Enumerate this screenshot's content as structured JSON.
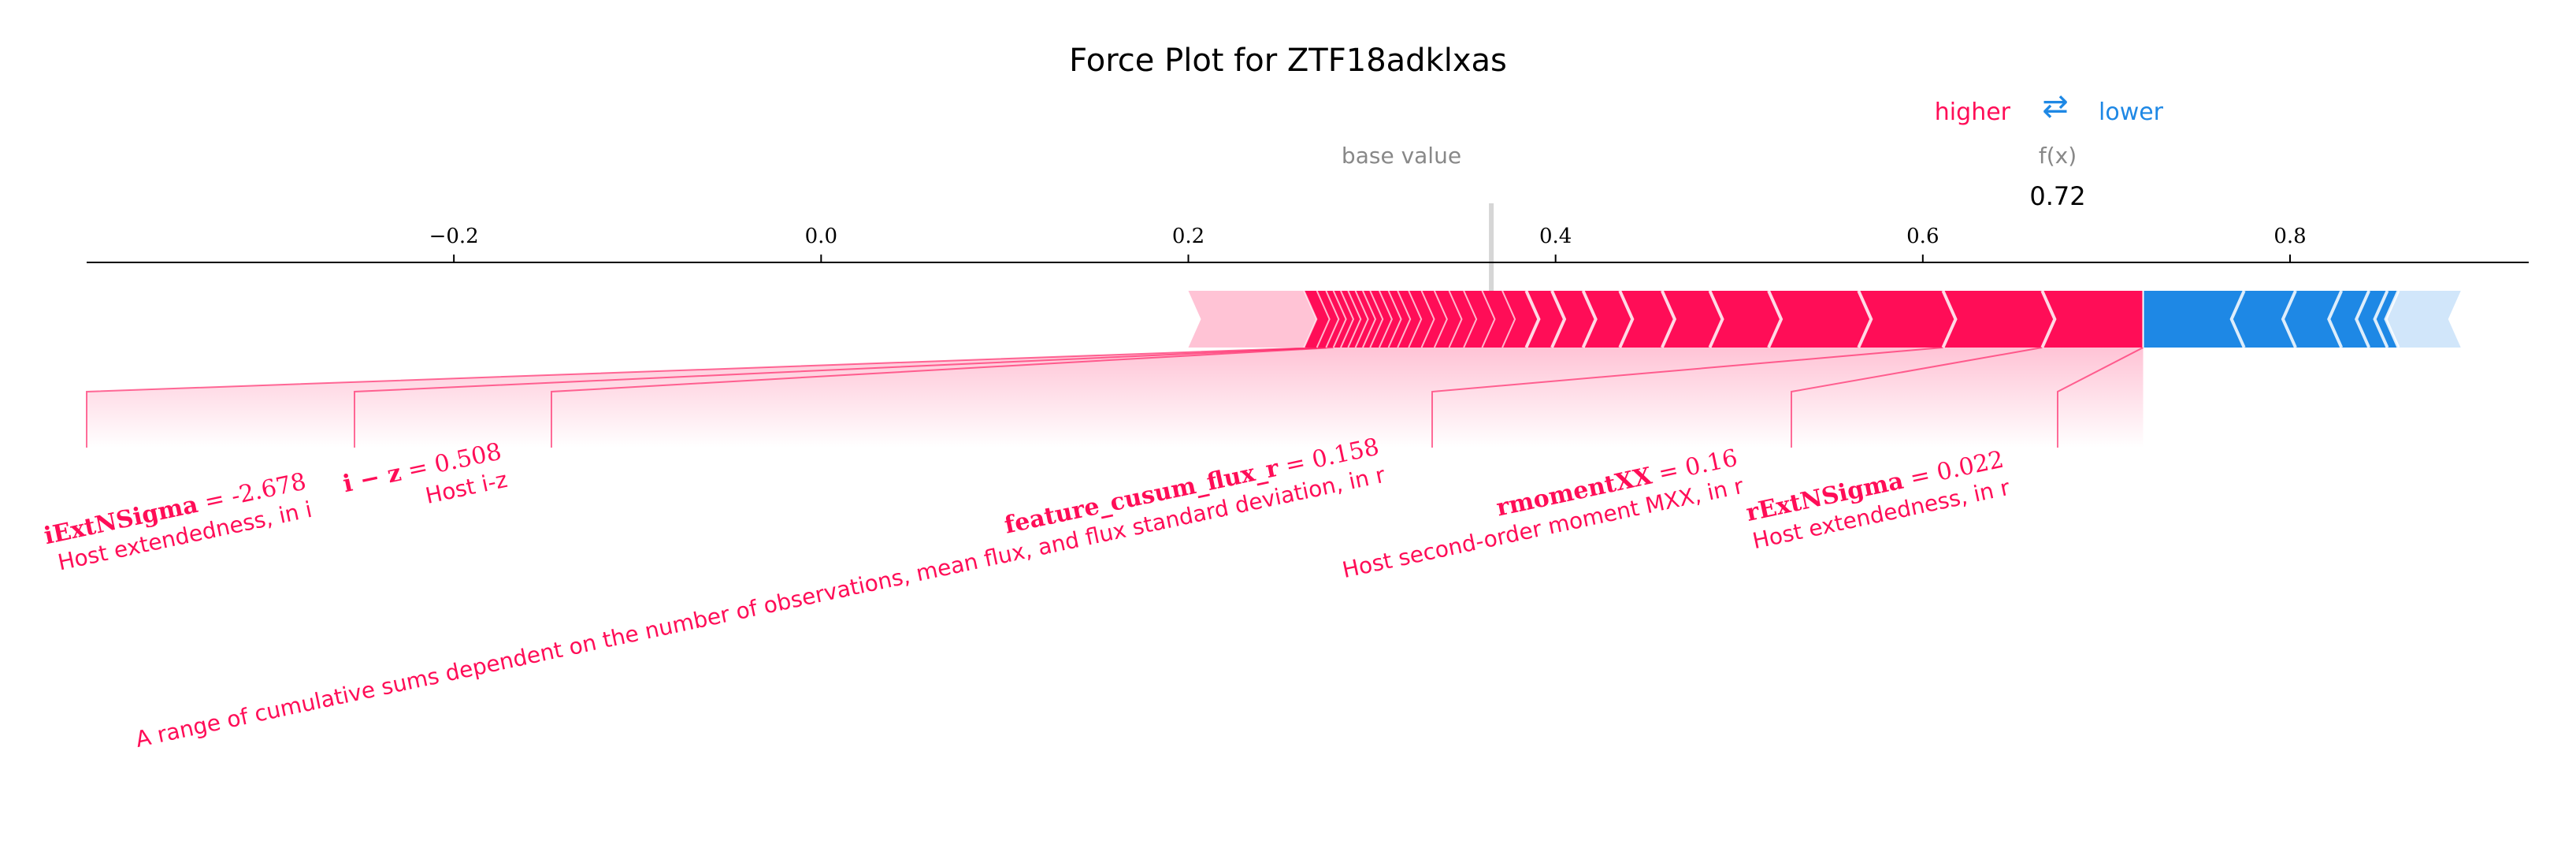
{
  "chart_data": {
    "type": "force",
    "title": "Force Plot for ZTF18adklxas",
    "legend": {
      "higher": "higher",
      "arrows": "⇄",
      "lower": "lower"
    },
    "labels": {
      "base_value": "base value",
      "fx": "f(x)"
    },
    "axis": {
      "xlim": [
        -0.4,
        0.93
      ],
      "ticks": [
        {
          "value": -0.2,
          "label": "−0.2"
        },
        {
          "value": 0.0,
          "label": "0.0"
        },
        {
          "value": 0.2,
          "label": "0.2"
        },
        {
          "value": 0.4,
          "label": "0.4"
        },
        {
          "value": 0.6,
          "label": "0.6"
        },
        {
          "value": 0.8,
          "label": "0.8"
        }
      ]
    },
    "base_value": 0.365,
    "output_value": 0.72,
    "output_label": "0.72",
    "positive_segments": [
      0.2,
      0.263,
      0.27,
      0.275,
      0.279,
      0.283,
      0.287,
      0.291,
      0.295,
      0.299,
      0.304,
      0.309,
      0.314,
      0.32,
      0.327,
      0.334,
      0.342,
      0.35,
      0.36,
      0.371,
      0.384,
      0.398,
      0.415,
      0.435,
      0.458,
      0.484,
      0.516,
      0.565,
      0.611,
      0.665,
      0.72
    ],
    "negative_segments": [
      0.72,
      0.775,
      0.803,
      0.828,
      0.843,
      0.853,
      0.859,
      0.893
    ],
    "annotated_features": [
      {
        "name": "iExtNSigma",
        "value": "-2.678",
        "description": "Host extendedness, in i",
        "seg_start": 0.263,
        "seg_end": 0.27
      },
      {
        "name": "i − z",
        "value": "0.508",
        "description": "Host i-z",
        "seg_start": 0.27,
        "seg_end": 0.275
      },
      {
        "name": "feature_cusum_flux_r",
        "value": "0.158",
        "description": "A range of cumulative sums dependent on the number of observations, mean flux, and flux standard deviation, in r",
        "seg_start": 0.275,
        "seg_end": 0.279
      },
      {
        "name": "rmomentXX",
        "value": "0.16",
        "description": "Host second-order moment MXX, in r",
        "seg_start": 0.565,
        "seg_end": 0.611
      },
      {
        "name": "rExtNSigma",
        "value": "0.022",
        "description": "Host extendedness, in r",
        "seg_start": 0.611,
        "seg_end": 0.665
      },
      {
        "name": "",
        "value": "",
        "description": "",
        "seg_start": 0.665,
        "seg_end": 0.72
      }
    ],
    "colors": {
      "positive": "#ff0d57",
      "negative": "#1e88e5",
      "positive_light": "#ffc3d5",
      "negative_light": "#d1e6fa"
    }
  }
}
